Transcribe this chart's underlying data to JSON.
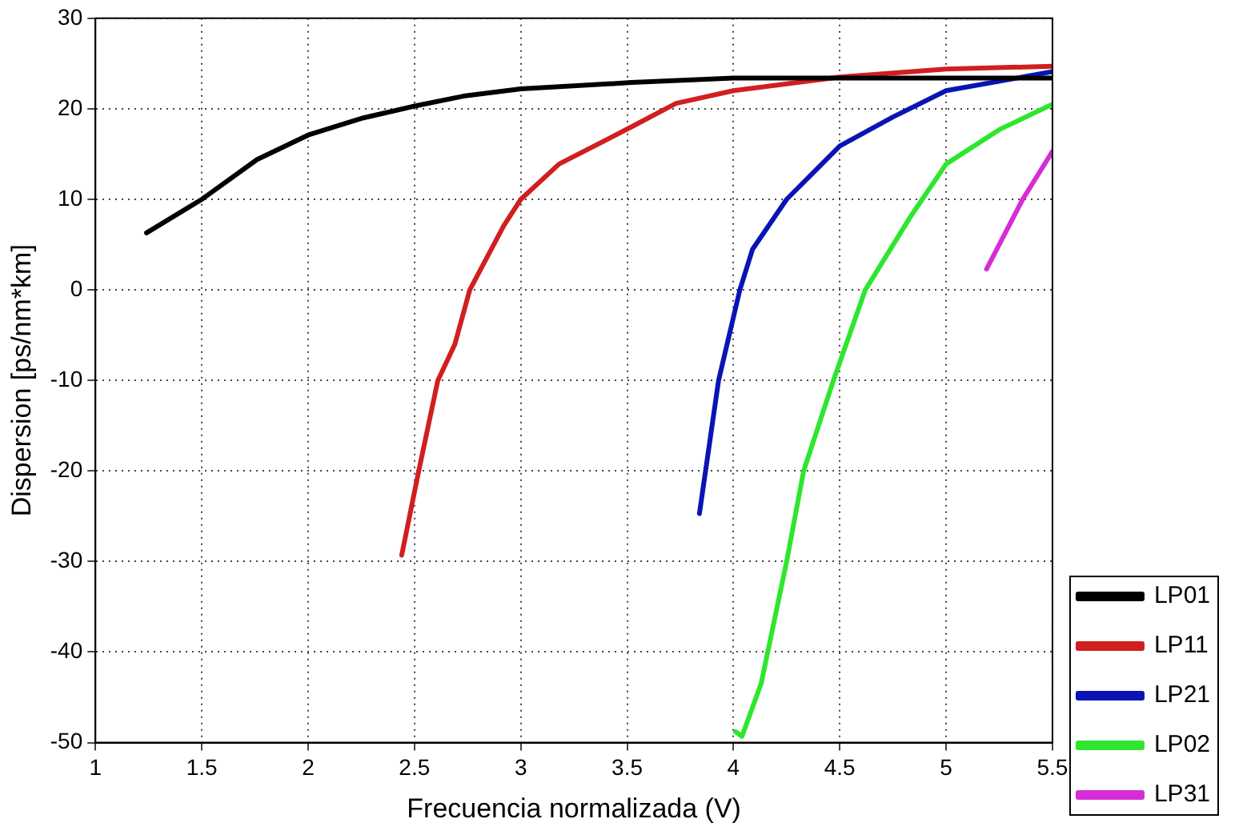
{
  "chart_data": {
    "type": "line",
    "xlabel": "Frecuencia normalizada (V)",
    "ylabel": "Dispersion [ps/nm*km]",
    "xlim": [
      1,
      5.5
    ],
    "xticks": [
      1,
      1.5,
      2,
      2.5,
      3,
      3.5,
      4,
      4.5,
      5,
      5.5
    ],
    "ylim": [
      -50,
      30
    ],
    "yticks": [
      -50,
      -40,
      -30,
      -20,
      -10,
      0,
      10,
      20,
      30
    ],
    "grid": true,
    "legend": "bottom right",
    "marker": "none",
    "line_style": "solid",
    "series": [
      {
        "name": "LP01",
        "color": "#000000",
        "x": [
          1.24,
          1.5,
          1.76,
          2.0,
          2.26,
          2.5,
          2.73,
          3.0,
          3.52,
          4.0,
          4.5,
          5.0,
          5.5
        ],
        "values": [
          6.3,
          10,
          14.4,
          17.1,
          19,
          20.3,
          21.4,
          22.2,
          22.9,
          23.4,
          23.4,
          23.4,
          23.4
        ]
      },
      {
        "name": "LP11",
        "color": "#d11f1f",
        "x": [
          2.44,
          2.52,
          2.61,
          2.69,
          2.76,
          2.92,
          3.0,
          3.18,
          3.52,
          3.73,
          4.0,
          4.5,
          5.0,
          5.5
        ],
        "values": [
          -29.3,
          -20,
          -10,
          -6,
          0,
          7.1,
          10,
          13.9,
          18,
          20.6,
          22,
          23.5,
          24.4,
          24.7
        ]
      },
      {
        "name": "LP21",
        "color": "#0a14b4",
        "x": [
          3.84,
          3.93,
          4.03,
          4.09,
          4.25,
          4.5,
          4.75,
          5.0,
          5.5
        ],
        "values": [
          -24.7,
          -10,
          0,
          4.5,
          10,
          15.9,
          19.1,
          22,
          24.1
        ]
      },
      {
        "name": "LP02",
        "color": "#2ee62e",
        "x": [
          4.01,
          4.04,
          4.13,
          4.25,
          4.33,
          4.47,
          4.62,
          4.83,
          5.0,
          5.25,
          5.5
        ],
        "values": [
          -48.8,
          -49.3,
          -43.5,
          -30,
          -20,
          -10,
          0,
          8,
          13.9,
          17.7,
          20.5
        ]
      },
      {
        "name": "LP31",
        "color": "#d52ed5",
        "x": [
          5.19,
          5.36,
          5.5
        ],
        "values": [
          2.3,
          10,
          15.3
        ]
      }
    ]
  }
}
